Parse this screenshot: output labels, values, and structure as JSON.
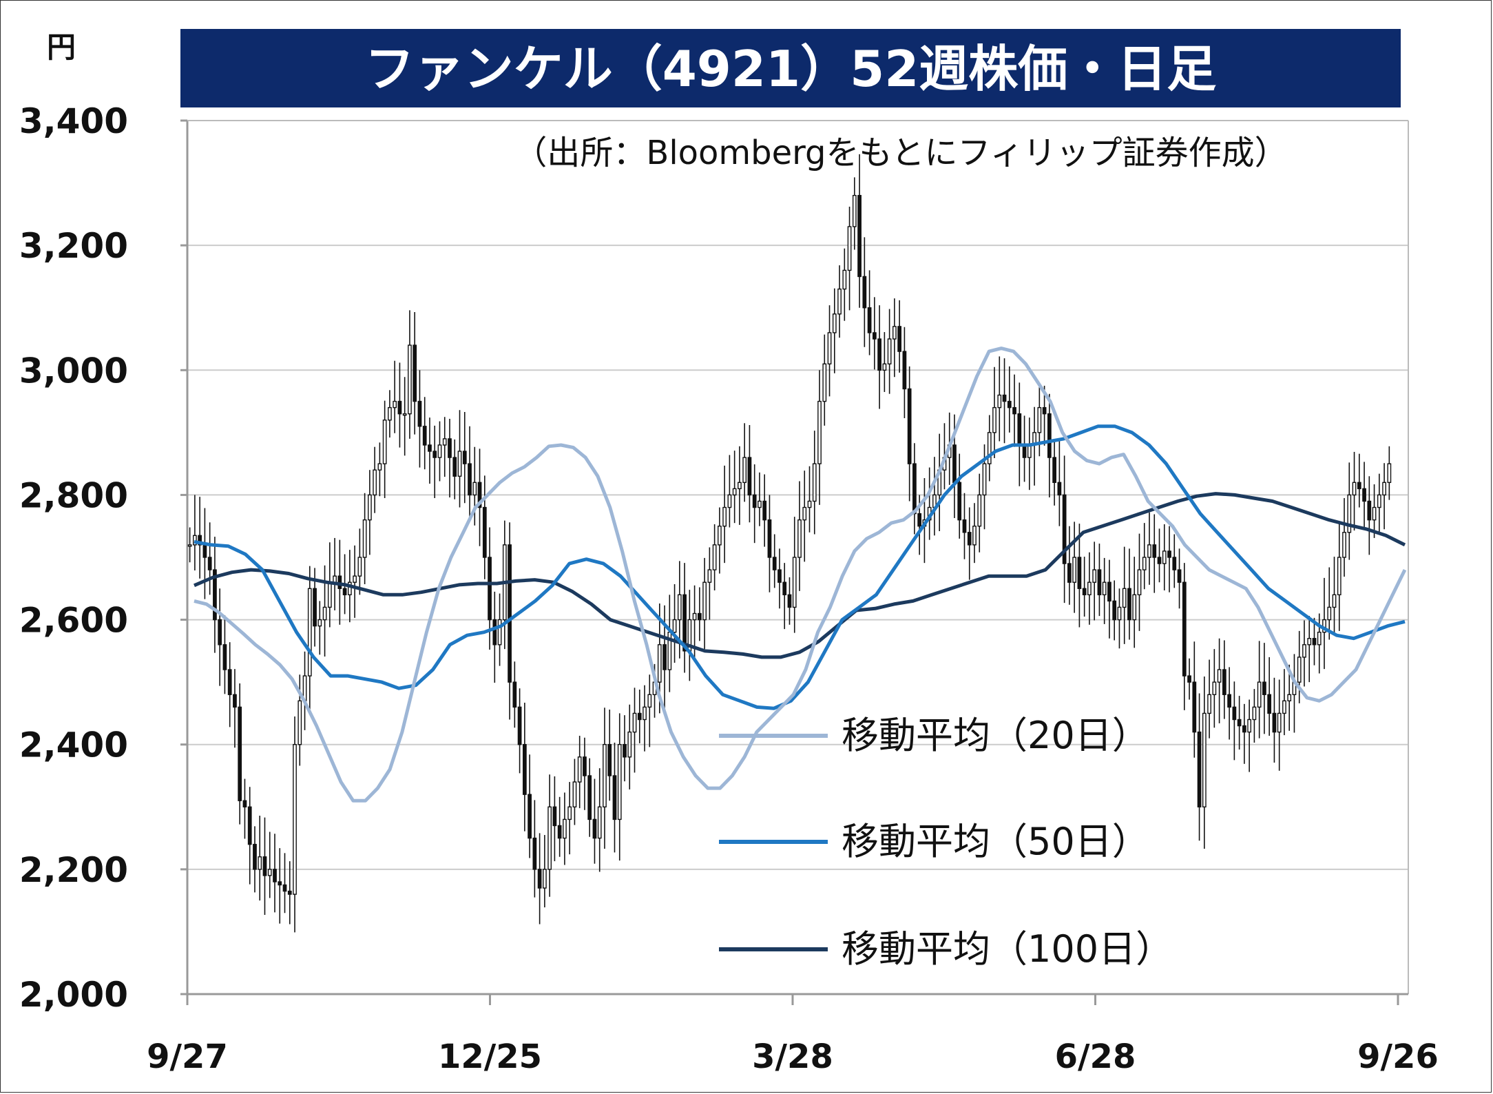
{
  "chart_data": {
    "type": "candlestick",
    "title": "ファンケル（4921）52週株価・日足",
    "subtitle": "（出所：Bloombergをもとにフィリップ証券作成）",
    "yunit": "円",
    "ylim": [
      2000,
      3400
    ],
    "yticks": [
      "2,000",
      "2,200",
      "2,400",
      "2,600",
      "2,800",
      "3,000",
      "3,200",
      "3,400"
    ],
    "ytick_values": [
      2000,
      2200,
      2400,
      2600,
      2800,
      3000,
      3200,
      3400
    ],
    "xticks": [
      "9/27",
      "12/25",
      "3/28",
      "6/28",
      "9/26"
    ],
    "xtick_index": [
      0,
      60,
      120,
      180,
      240
    ],
    "grid": true,
    "colors": {
      "title_bg": "#0d2a6b",
      "ma20": "#9db6d6",
      "ma50": "#1f78c3",
      "ma100": "#1c3a5e",
      "candle": "#111111",
      "grid": "#cccccc"
    },
    "legend": [
      {
        "label": "移動平均（20日）",
        "key": "ma20"
      },
      {
        "label": "移動平均（50日）",
        "key": "ma50"
      },
      {
        "label": "移動平均（100日）",
        "key": "ma100"
      }
    ],
    "close": [
      2720,
      2735,
      2720,
      2700,
      2680,
      2600,
      2560,
      2520,
      2480,
      2460,
      2310,
      2300,
      2240,
      2200,
      2220,
      2190,
      2200,
      2180,
      2175,
      2165,
      2160,
      2400,
      2470,
      2510,
      2650,
      2590,
      2600,
      2620,
      2660,
      2670,
      2650,
      2640,
      2660,
      2670,
      2700,
      2760,
      2800,
      2840,
      2850,
      2920,
      2940,
      2950,
      2930,
      2930,
      3040,
      2950,
      2910,
      2880,
      2870,
      2860,
      2880,
      2890,
      2860,
      2830,
      2870,
      2850,
      2800,
      2820,
      2780,
      2700,
      2600,
      2560,
      2600,
      2720,
      2500,
      2460,
      2400,
      2320,
      2250,
      2200,
      2170,
      2200,
      2300,
      2270,
      2250,
      2280,
      2300,
      2340,
      2380,
      2350,
      2280,
      2250,
      2300,
      2400,
      2350,
      2280,
      2400,
      2380,
      2420,
      2450,
      2440,
      2460,
      2480,
      2500,
      2560,
      2520,
      2580,
      2600,
      2640,
      2550,
      2600,
      2610,
      2600,
      2660,
      2680,
      2720,
      2750,
      2780,
      2800,
      2810,
      2820,
      2860,
      2800,
      2780,
      2790,
      2760,
      2700,
      2680,
      2660,
      2640,
      2620,
      2700,
      2760,
      2780,
      2790,
      2850,
      2950,
      3010,
      3060,
      3090,
      3130,
      3160,
      3230,
      3280,
      3150,
      3100,
      3060,
      3050,
      3000,
      3010,
      3050,
      3070,
      3030,
      2970,
      2850,
      2770,
      2750,
      2760,
      2780,
      2800,
      2840,
      2860,
      2880,
      2820,
      2760,
      2740,
      2720,
      2750,
      2800,
      2850,
      2900,
      2940,
      2960,
      2950,
      2940,
      2930,
      2880,
      2860,
      2880,
      2900,
      2940,
      2930,
      2860,
      2820,
      2800,
      2690,
      2660,
      2700,
      2650,
      2640,
      2660,
      2680,
      2640,
      2660,
      2630,
      2600,
      2620,
      2650,
      2600,
      2640,
      2680,
      2700,
      2720,
      2700,
      2690,
      2710,
      2700,
      2680,
      2660,
      2510,
      2500,
      2420,
      2300,
      2450,
      2480,
      2500,
      2520,
      2480,
      2460,
      2440,
      2430,
      2420,
      2440,
      2460,
      2500,
      2480,
      2450,
      2420,
      2450,
      2470,
      2480,
      2500,
      2540,
      2560,
      2570,
      2560,
      2580,
      2600,
      2620,
      2640,
      2700,
      2740,
      2800,
      2820,
      2810,
      2790,
      2760,
      2780,
      2800,
      2820,
      2850
    ],
    "ma20": [
      2630,
      2625,
      2612,
      2595,
      2578,
      2560,
      2545,
      2528,
      2505,
      2470,
      2430,
      2385,
      2340,
      2310,
      2310,
      2330,
      2360,
      2420,
      2500,
      2580,
      2650,
      2700,
      2740,
      2780,
      2800,
      2820,
      2835,
      2845,
      2860,
      2878,
      2880,
      2876,
      2860,
      2830,
      2780,
      2710,
      2630,
      2560,
      2480,
      2420,
      2380,
      2350,
      2330,
      2330,
      2350,
      2380,
      2420,
      2440,
      2460,
      2480,
      2520,
      2580,
      2620,
      2670,
      2710,
      2730,
      2740,
      2755,
      2760,
      2775,
      2800,
      2840,
      2890,
      2940,
      2990,
      3030,
      3035,
      3030,
      3010,
      2980,
      2950,
      2900,
      2870,
      2855,
      2850,
      2860,
      2865,
      2830,
      2790,
      2770,
      2750,
      2720,
      2700,
      2680,
      2670,
      2660,
      2650,
      2620,
      2580,
      2540,
      2500,
      2475,
      2470,
      2480,
      2500,
      2520,
      2560,
      2600,
      2640,
      2680
    ],
    "ma50": [
      2725,
      2720,
      2718,
      2705,
      2680,
      2630,
      2580,
      2540,
      2510,
      2510,
      2505,
      2500,
      2490,
      2495,
      2520,
      2560,
      2575,
      2580,
      2590,
      2610,
      2630,
      2655,
      2690,
      2697,
      2690,
      2670,
      2640,
      2610,
      2580,
      2550,
      2510,
      2480,
      2470,
      2460,
      2458,
      2470,
      2500,
      2550,
      2600,
      2620,
      2640,
      2680,
      2720,
      2760,
      2800,
      2830,
      2850,
      2870,
      2880,
      2880,
      2885,
      2890,
      2900,
      2910,
      2910,
      2900,
      2880,
      2850,
      2810,
      2770,
      2740,
      2710,
      2680,
      2650,
      2630,
      2610,
      2590,
      2575,
      2570,
      2580,
      2590,
      2597
    ],
    "ma100": [
      2655,
      2668,
      2676,
      2680,
      2678,
      2674,
      2666,
      2660,
      2656,
      2648,
      2640,
      2640,
      2644,
      2650,
      2656,
      2658,
      2658,
      2662,
      2664,
      2660,
      2645,
      2625,
      2600,
      2590,
      2580,
      2570,
      2560,
      2550,
      2548,
      2545,
      2540,
      2540,
      2548,
      2565,
      2590,
      2615,
      2618,
      2625,
      2630,
      2640,
      2650,
      2660,
      2670,
      2670,
      2670,
      2680,
      2710,
      2740,
      2750,
      2760,
      2770,
      2780,
      2790,
      2798,
      2802,
      2800,
      2795,
      2790,
      2780,
      2770,
      2760,
      2752,
      2745,
      2735,
      2720
    ]
  }
}
